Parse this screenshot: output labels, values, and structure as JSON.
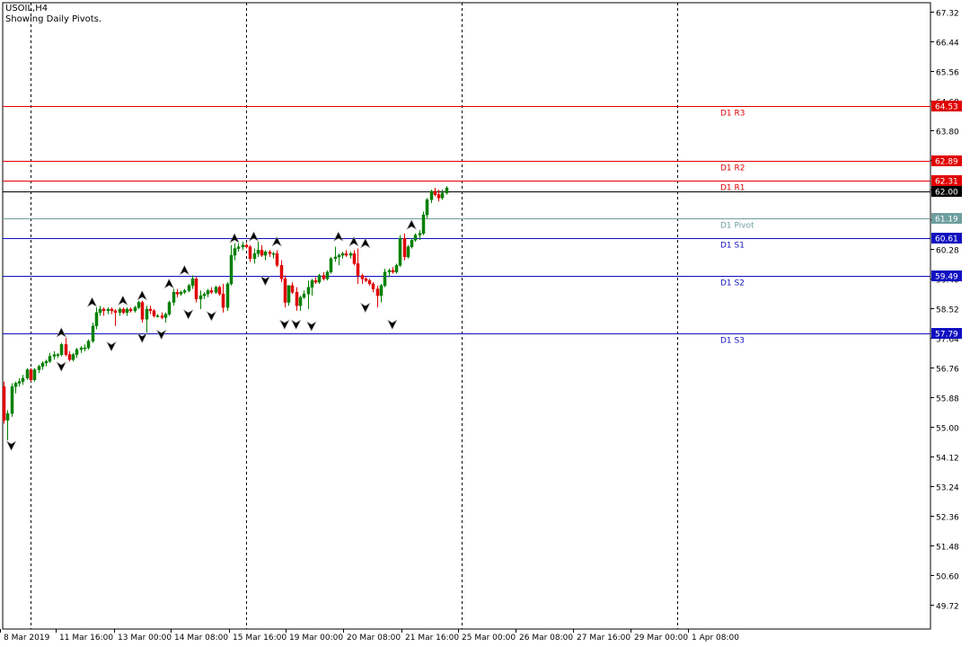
{
  "chart_data": {
    "type": "candlestick",
    "symbol_title": "USOIL,H4",
    "subtitle": "Showing Daily Pivots.",
    "y_axis": {
      "min": 49.0,
      "max": 67.6,
      "ticks": [
        "67.32",
        "66.44",
        "65.56",
        "64.68",
        "63.80",
        "62.92",
        "62.04",
        "61.16",
        "60.28",
        "59.40",
        "58.52",
        "57.64",
        "56.76",
        "55.88",
        "55.00",
        "54.12",
        "53.24",
        "52.36",
        "51.48",
        "50.60",
        "49.72"
      ]
    },
    "x_axis": {
      "labels": [
        "8 Mar 2019",
        "11 Mar 16:00",
        "13 Mar 00:00",
        "14 Mar 08:00",
        "15 Mar 16:00",
        "19 Mar 00:00",
        "20 Mar 08:00",
        "21 Mar 16:00",
        "25 Mar 00:00",
        "26 Mar 08:00",
        "27 Mar 16:00",
        "29 Mar 00:00",
        "1 Apr 08:00"
      ]
    },
    "day_separators_at_bar": [
      7,
      63,
      119,
      175
    ],
    "pivot_lines": [
      {
        "name": "D1 R3",
        "value": 64.53,
        "label": "64.53",
        "color": "#e00000"
      },
      {
        "name": "D1 R2",
        "value": 62.89,
        "label": "62.89",
        "color": "#e00000"
      },
      {
        "name": "D1 R1",
        "value": 62.31,
        "label": "62.31",
        "color": "#e00000"
      },
      {
        "name": "D1 Pivot",
        "value": 61.19,
        "label": "61.19",
        "color": "#6e9e9e"
      },
      {
        "name": "D1 S1",
        "value": 60.61,
        "label": "60.61",
        "color": "#1010c0"
      },
      {
        "name": "D1 S2",
        "value": 59.49,
        "label": "59.49",
        "color": "#1010c0"
      },
      {
        "name": "D1 S3",
        "value": 57.79,
        "label": "57.79",
        "color": "#1010c0"
      }
    ],
    "current_price": {
      "value": 62.0,
      "label": "62.00"
    },
    "candles": [
      [
        56.2,
        56.35,
        55.1,
        55.2
      ],
      [
        55.2,
        55.5,
        54.6,
        55.4
      ],
      [
        55.4,
        56.3,
        55.3,
        56.2
      ],
      [
        56.2,
        56.35,
        56.0,
        56.3
      ],
      [
        56.3,
        56.45,
        56.2,
        56.35
      ],
      [
        56.35,
        56.55,
        56.25,
        56.45
      ],
      [
        56.45,
        56.75,
        56.4,
        56.7
      ],
      [
        56.7,
        56.75,
        56.35,
        56.4
      ],
      [
        56.4,
        56.75,
        56.35,
        56.7
      ],
      [
        56.7,
        56.85,
        56.6,
        56.8
      ],
      [
        56.8,
        56.95,
        56.7,
        56.9
      ],
      [
        56.9,
        57.0,
        56.8,
        56.95
      ],
      [
        56.95,
        57.2,
        56.9,
        57.1
      ],
      [
        57.1,
        57.25,
        57.0,
        57.15
      ],
      [
        57.15,
        57.2,
        57.05,
        57.15
      ],
      [
        57.15,
        57.5,
        57.1,
        57.45
      ],
      [
        57.45,
        57.65,
        57.1,
        57.15
      ],
      [
        57.15,
        57.25,
        56.95,
        57.0
      ],
      [
        57.0,
        57.2,
        56.95,
        57.15
      ],
      [
        57.15,
        57.35,
        57.05,
        57.3
      ],
      [
        57.3,
        57.4,
        57.2,
        57.35
      ],
      [
        57.35,
        57.45,
        57.25,
        57.35
      ],
      [
        57.35,
        57.6,
        57.3,
        57.55
      ],
      [
        57.55,
        58.1,
        57.5,
        58.0
      ],
      [
        58.0,
        58.55,
        57.9,
        58.4
      ],
      [
        58.4,
        58.6,
        58.3,
        58.5
      ],
      [
        58.5,
        58.55,
        58.3,
        58.45
      ],
      [
        58.45,
        58.55,
        58.35,
        58.5
      ],
      [
        58.5,
        58.55,
        58.35,
        58.45
      ],
      [
        58.45,
        58.5,
        58.0,
        58.4
      ],
      [
        58.4,
        58.55,
        58.3,
        58.5
      ],
      [
        58.5,
        58.55,
        58.35,
        58.4
      ],
      [
        58.4,
        58.55,
        58.3,
        58.5
      ],
      [
        58.5,
        58.55,
        58.4,
        58.45
      ],
      [
        58.45,
        58.6,
        58.4,
        58.55
      ],
      [
        58.55,
        58.75,
        58.5,
        58.7
      ],
      [
        58.7,
        58.75,
        58.1,
        58.2
      ],
      [
        58.2,
        58.6,
        57.8,
        58.5
      ],
      [
        58.5,
        58.6,
        58.35,
        58.45
      ],
      [
        58.45,
        58.5,
        58.25,
        58.3
      ],
      [
        58.3,
        58.35,
        58.25,
        58.3
      ],
      [
        58.3,
        58.4,
        58.2,
        58.25
      ],
      [
        58.25,
        58.4,
        58.1,
        58.35
      ],
      [
        58.35,
        58.75,
        58.3,
        58.7
      ],
      [
        58.7,
        59.1,
        58.6,
        59.0
      ],
      [
        59.0,
        59.1,
        58.85,
        58.95
      ],
      [
        58.95,
        59.05,
        58.9,
        59.0
      ],
      [
        59.0,
        59.1,
        58.95,
        59.05
      ],
      [
        59.05,
        59.25,
        59.0,
        59.2
      ],
      [
        59.2,
        59.5,
        59.1,
        59.4
      ],
      [
        59.4,
        59.45,
        58.7,
        58.8
      ],
      [
        58.8,
        59.05,
        58.5,
        58.9
      ],
      [
        58.9,
        59.0,
        58.8,
        58.95
      ],
      [
        58.95,
        59.1,
        58.85,
        59.05
      ],
      [
        59.05,
        59.15,
        58.95,
        59.0
      ],
      [
        59.0,
        59.2,
        58.95,
        59.15
      ],
      [
        59.15,
        59.2,
        58.9,
        58.95
      ],
      [
        58.95,
        59.25,
        58.4,
        58.55
      ],
      [
        58.55,
        59.3,
        58.45,
        59.25
      ],
      [
        59.25,
        60.4,
        59.2,
        60.1
      ],
      [
        60.1,
        60.45,
        59.95,
        60.3
      ],
      [
        60.3,
        60.45,
        60.2,
        60.35
      ],
      [
        60.35,
        60.5,
        60.25,
        60.4
      ],
      [
        60.4,
        60.45,
        60.3,
        60.35
      ],
      [
        60.35,
        60.4,
        59.9,
        60.0
      ],
      [
        60.0,
        60.3,
        59.85,
        60.15
      ],
      [
        60.15,
        60.5,
        60.05,
        60.25
      ],
      [
        60.25,
        60.4,
        60.05,
        60.1
      ],
      [
        60.1,
        60.25,
        59.95,
        60.2
      ],
      [
        60.2,
        60.25,
        60.05,
        60.15
      ],
      [
        60.15,
        60.2,
        60.0,
        60.15
      ],
      [
        60.15,
        60.25,
        59.75,
        59.8
      ],
      [
        59.8,
        59.95,
        59.3,
        59.4
      ],
      [
        59.4,
        59.5,
        58.55,
        58.7
      ],
      [
        58.7,
        59.2,
        58.6,
        59.2
      ],
      [
        59.2,
        59.3,
        58.95,
        59.0
      ],
      [
        59.0,
        59.15,
        58.45,
        58.6
      ],
      [
        58.6,
        58.9,
        58.45,
        58.85
      ],
      [
        58.85,
        59.05,
        58.8,
        58.95
      ],
      [
        58.95,
        59.35,
        58.5,
        59.15
      ],
      [
        59.15,
        59.4,
        58.9,
        59.35
      ],
      [
        59.35,
        59.45,
        59.25,
        59.3
      ],
      [
        59.3,
        59.55,
        59.25,
        59.5
      ],
      [
        59.5,
        59.6,
        59.35,
        59.4
      ],
      [
        59.4,
        59.65,
        59.35,
        59.6
      ],
      [
        59.6,
        60.05,
        59.55,
        60.0
      ],
      [
        60.0,
        60.35,
        59.9,
        60.05
      ],
      [
        60.05,
        60.15,
        59.8,
        60.1
      ],
      [
        60.1,
        60.2,
        60.0,
        60.15
      ],
      [
        60.15,
        60.25,
        60.05,
        60.1
      ],
      [
        60.1,
        60.2,
        60.0,
        60.15
      ],
      [
        60.15,
        60.25,
        59.8,
        59.85
      ],
      [
        59.85,
        60.3,
        59.25,
        59.5
      ],
      [
        59.5,
        59.55,
        59.25,
        59.4
      ],
      [
        59.4,
        59.45,
        59.3,
        59.35
      ],
      [
        59.35,
        59.4,
        59.2,
        59.25
      ],
      [
        59.25,
        59.3,
        59.0,
        59.1
      ],
      [
        59.1,
        59.2,
        58.55,
        58.9
      ],
      [
        58.9,
        59.25,
        58.7,
        59.2
      ],
      [
        59.2,
        59.7,
        59.15,
        59.6
      ],
      [
        59.6,
        59.7,
        59.45,
        59.65
      ],
      [
        59.65,
        59.75,
        59.55,
        59.6
      ],
      [
        59.6,
        59.85,
        59.55,
        59.8
      ],
      [
        59.8,
        60.7,
        59.75,
        60.6
      ],
      [
        60.6,
        60.75,
        59.95,
        60.05
      ],
      [
        60.05,
        60.4,
        60.0,
        60.35
      ],
      [
        60.35,
        60.6,
        60.3,
        60.55
      ],
      [
        60.55,
        60.75,
        60.5,
        60.7
      ],
      [
        60.7,
        60.85,
        60.55,
        60.75
      ],
      [
        60.75,
        61.4,
        60.7,
        61.3
      ],
      [
        61.3,
        61.8,
        61.2,
        61.75
      ],
      [
        61.75,
        62.05,
        61.65,
        62.0
      ],
      [
        62.0,
        62.1,
        61.85,
        61.9
      ],
      [
        61.9,
        62.05,
        61.7,
        61.8
      ],
      [
        61.8,
        62.05,
        61.75,
        61.95
      ],
      [
        61.95,
        62.15,
        61.9,
        62.1
      ]
    ],
    "fractals": [
      {
        "bar": 2,
        "up": false,
        "value": 54.6
      },
      {
        "bar": 15,
        "up": true,
        "value": 57.65
      },
      {
        "bar": 15,
        "up": false,
        "value": 56.95
      },
      {
        "bar": 23,
        "up": true,
        "value": 58.55
      },
      {
        "bar": 28,
        "up": false,
        "value": 57.55
      },
      {
        "bar": 31,
        "up": true,
        "value": 58.6
      },
      {
        "bar": 36,
        "up": true,
        "value": 58.75
      },
      {
        "bar": 36,
        "up": false,
        "value": 57.8
      },
      {
        "bar": 41,
        "up": false,
        "value": 57.9
      },
      {
        "bar": 43,
        "up": true,
        "value": 59.1
      },
      {
        "bar": 47,
        "up": true,
        "value": 59.5
      },
      {
        "bar": 48,
        "up": false,
        "value": 58.5
      },
      {
        "bar": 54,
        "up": false,
        "value": 58.45
      },
      {
        "bar": 60,
        "up": true,
        "value": 60.45
      },
      {
        "bar": 65,
        "up": true,
        "value": 60.5
      },
      {
        "bar": 68,
        "up": false,
        "value": 59.5
      },
      {
        "bar": 71,
        "up": true,
        "value": 60.35
      },
      {
        "bar": 73,
        "up": false,
        "value": 58.2
      },
      {
        "bar": 76,
        "up": false,
        "value": 58.2
      },
      {
        "bar": 80,
        "up": false,
        "value": 58.15
      },
      {
        "bar": 87,
        "up": true,
        "value": 60.5
      },
      {
        "bar": 91,
        "up": true,
        "value": 60.35
      },
      {
        "bar": 94,
        "up": true,
        "value": 60.3
      },
      {
        "bar": 94,
        "up": false,
        "value": 58.7
      },
      {
        "bar": 101,
        "up": false,
        "value": 58.2
      },
      {
        "bar": 106,
        "up": true,
        "value": 60.85
      }
    ],
    "colors": {
      "bull": "#008000",
      "bear": "#e00000",
      "axis": "#000000",
      "grid_vertical": "#000000"
    }
  }
}
